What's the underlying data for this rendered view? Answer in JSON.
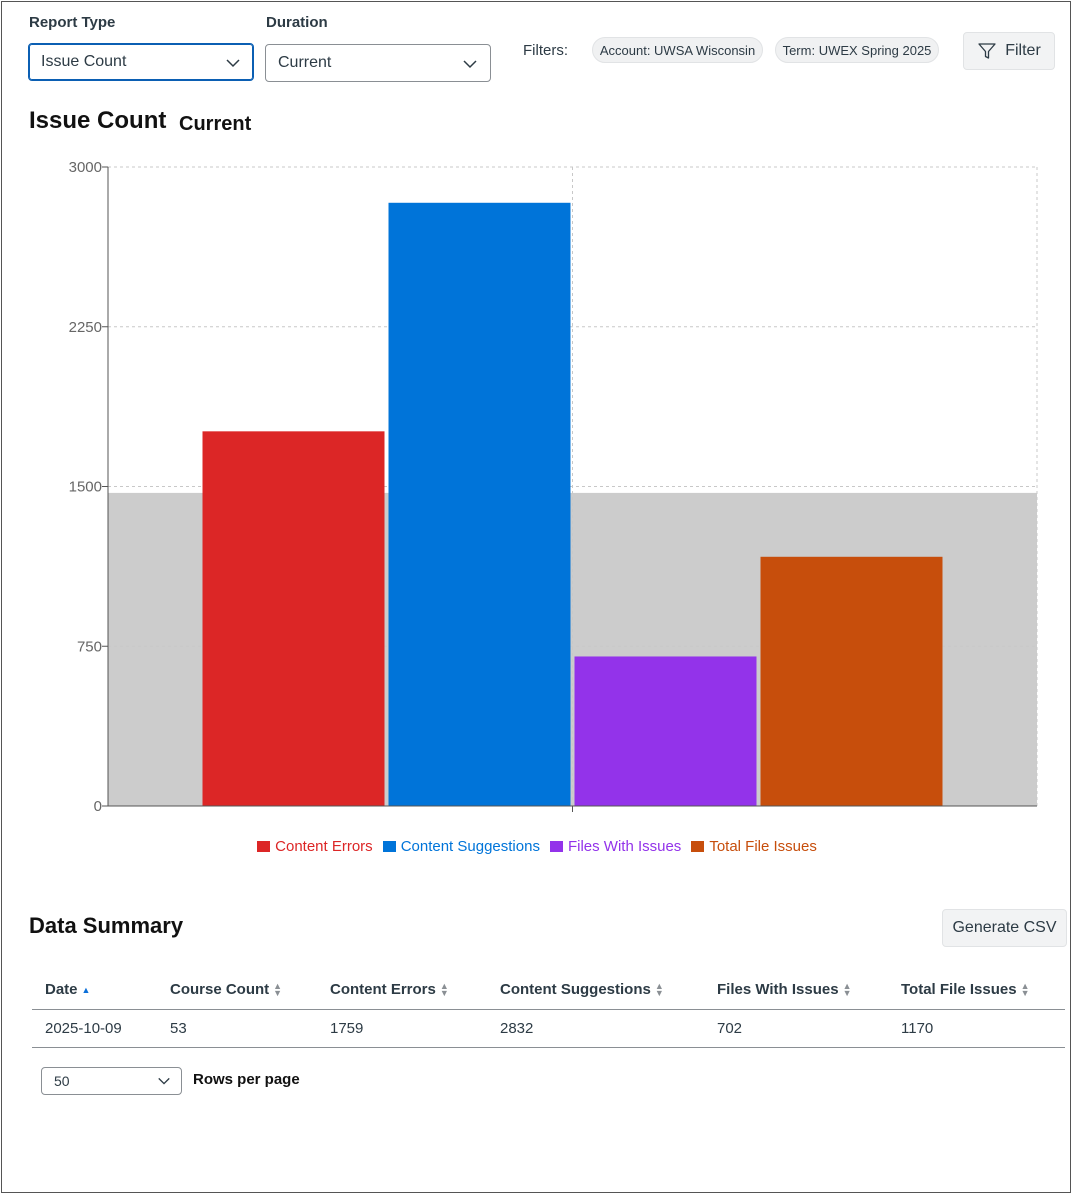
{
  "controls": {
    "report_type_label": "Report Type",
    "report_type_value": "Issue Count",
    "duration_label": "Duration",
    "duration_value": "Current",
    "filters_label": "Filters:",
    "filter_chips": [
      "Account: UWSA Wisconsin",
      "Term: UWEX Spring 2025"
    ],
    "filter_button_label": "Filter"
  },
  "chart_header": {
    "title": "Issue Count",
    "subtitle": "Current"
  },
  "chart_data": {
    "type": "bar",
    "categories": [
      "Content Errors",
      "Content Suggestions",
      "Files With Issues",
      "Total File Issues"
    ],
    "values": [
      1759,
      2832,
      702,
      1170
    ],
    "colors": [
      "#dc2626",
      "#0074d9",
      "#9333ea",
      "#c74e0c"
    ],
    "yticks": [
      "0",
      "750",
      "1500",
      "2250",
      "3000"
    ],
    "ylim": [
      0,
      3000
    ],
    "background_band_top": 1470,
    "band_color": "#cccccc",
    "grid": true,
    "legend_position": "bottom"
  },
  "summary": {
    "title": "Data Summary",
    "csv_button_label": "Generate CSV",
    "columns": [
      "Date",
      "Course Count",
      "Content Errors",
      "Content Suggestions",
      "Files With Issues",
      "Total File Issues"
    ],
    "rows": [
      [
        "2025-10-09",
        "53",
        "1759",
        "2832",
        "702",
        "1170"
      ]
    ],
    "rows_per_page_value": "50",
    "rows_per_page_label": "Rows per page"
  },
  "icons": {
    "select_chevron": "chevron-down-icon",
    "filter": "funnel-icon"
  }
}
